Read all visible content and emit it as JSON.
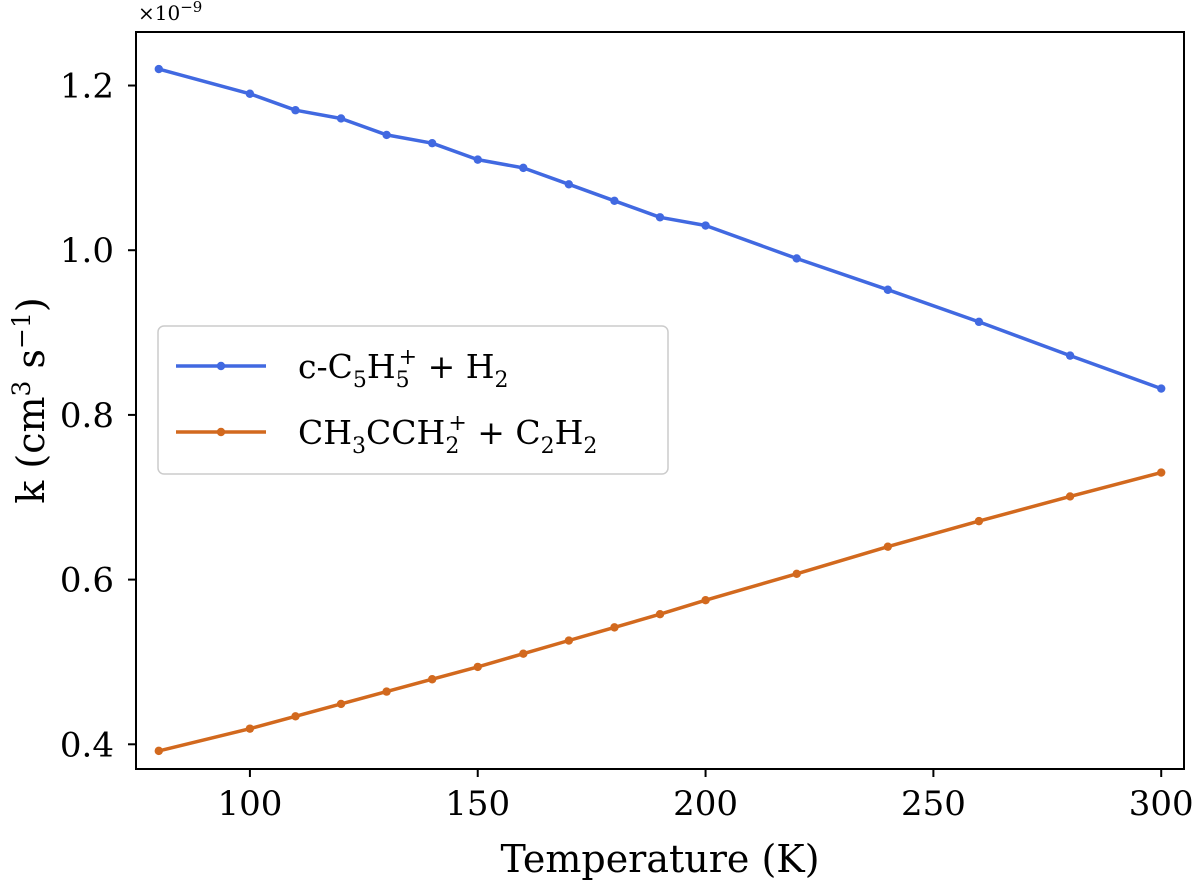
{
  "chart_data": {
    "type": "line",
    "xlabel": "Temperature (K)",
    "ylabel": "k (cm³ s⁻¹)",
    "ylabel_parts": {
      "pre": "k (cm",
      "sup1": "3",
      "mid": " s",
      "sup2": "−1",
      "post": ")"
    },
    "y_offset_label": {
      "base": "×10",
      "exp": "−9"
    },
    "xlim": [
      75,
      305
    ],
    "ylim": [
      0.37,
      1.265
    ],
    "x_ticks": [
      100,
      150,
      200,
      250,
      300
    ],
    "y_ticks": [
      0.4,
      0.6,
      0.8,
      1.0,
      1.2
    ],
    "x_tick_labels": [
      "100",
      "150",
      "200",
      "250",
      "300"
    ],
    "y_tick_labels": [
      "0.4",
      "0.6",
      "0.8",
      "1.0",
      "1.2"
    ],
    "grid": false,
    "legend_position": "center-left",
    "series": [
      {
        "name": "c-C5H5+ + H2",
        "name_parts": [
          {
            "t": "c-C"
          },
          {
            "t": "5",
            "s": "sub"
          },
          {
            "t": "H"
          },
          {
            "t": "5",
            "s": "sub"
          },
          {
            "t": "+",
            "s": "sup",
            "dx": -11
          },
          {
            "t": " + H"
          },
          {
            "t": "2",
            "s": "sub"
          }
        ],
        "color": "#4169e1",
        "x": [
          80,
          100,
          110,
          120,
          130,
          140,
          150,
          160,
          170,
          180,
          190,
          200,
          220,
          240,
          260,
          280,
          300
        ],
        "y": [
          1.22,
          1.19,
          1.17,
          1.16,
          1.14,
          1.13,
          1.11,
          1.1,
          1.08,
          1.06,
          1.04,
          1.03,
          0.99,
          0.952,
          0.913,
          0.872,
          0.832
        ]
      },
      {
        "name": "CH3CCH2+ + C2H2",
        "name_parts": [
          {
            "t": "CH"
          },
          {
            "t": "3",
            "s": "sub"
          },
          {
            "t": "CCH"
          },
          {
            "t": "2",
            "s": "sub"
          },
          {
            "t": "+",
            "s": "sup",
            "dx": -11
          },
          {
            "t": " + C"
          },
          {
            "t": "2",
            "s": "sub"
          },
          {
            "t": "H"
          },
          {
            "t": "2",
            "s": "sub"
          }
        ],
        "color": "#d2691e",
        "x": [
          80,
          100,
          110,
          120,
          130,
          140,
          150,
          160,
          170,
          180,
          190,
          200,
          220,
          240,
          260,
          280,
          300
        ],
        "y": [
          0.392,
          0.419,
          0.434,
          0.449,
          0.464,
          0.479,
          0.494,
          0.51,
          0.526,
          0.542,
          0.558,
          0.575,
          0.607,
          0.64,
          0.671,
          0.701,
          0.73
        ]
      }
    ]
  }
}
